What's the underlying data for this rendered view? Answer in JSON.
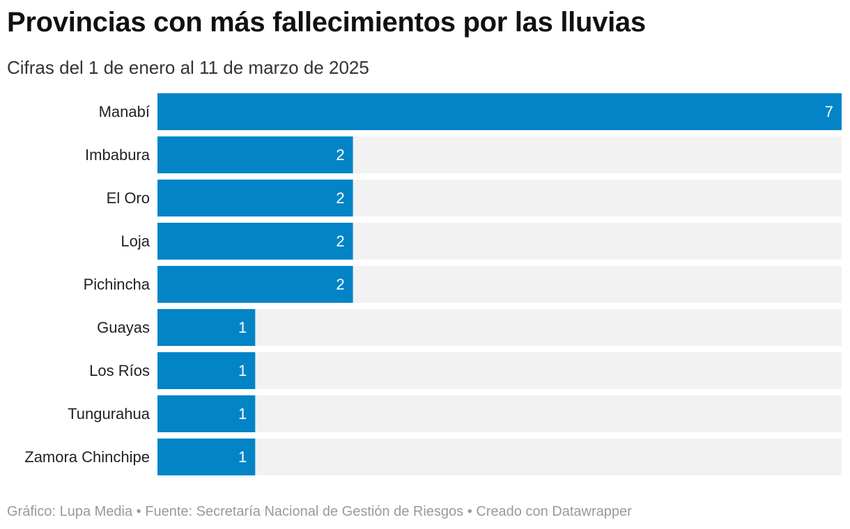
{
  "title": "Provincias con más fallecimientos por las lluvias",
  "subtitle": "Cifras del 1 de enero al 11 de marzo de 2025",
  "footer": {
    "credit": "Gráfico: Lupa Media",
    "sep1": "•",
    "source": "Fuente: Secretaría Nacional de Gestión de Riesgos",
    "sep2": "•",
    "created": "Creado con Datawrapper"
  },
  "colors": {
    "bar": "#0284c7",
    "track": "#f2f2f2",
    "label_inside": "#ffffff",
    "category": "#222222"
  },
  "chart_data": {
    "type": "bar",
    "orientation": "horizontal",
    "title": "Provincias con más fallecimientos por las lluvias",
    "subtitle": "Cifras del 1 de enero al 11 de marzo de 2025",
    "categories": [
      "Manabí",
      "Imbabura",
      "El Oro",
      "Loja",
      "Pichincha",
      "Guayas",
      "Los Ríos",
      "Tungurahua",
      "Zamora Chinchipe"
    ],
    "values": [
      7,
      2,
      2,
      2,
      2,
      1,
      1,
      1,
      1
    ],
    "xlim": [
      0,
      7
    ],
    "data_labels": true,
    "grid": false,
    "xlabel": "",
    "ylabel": ""
  }
}
